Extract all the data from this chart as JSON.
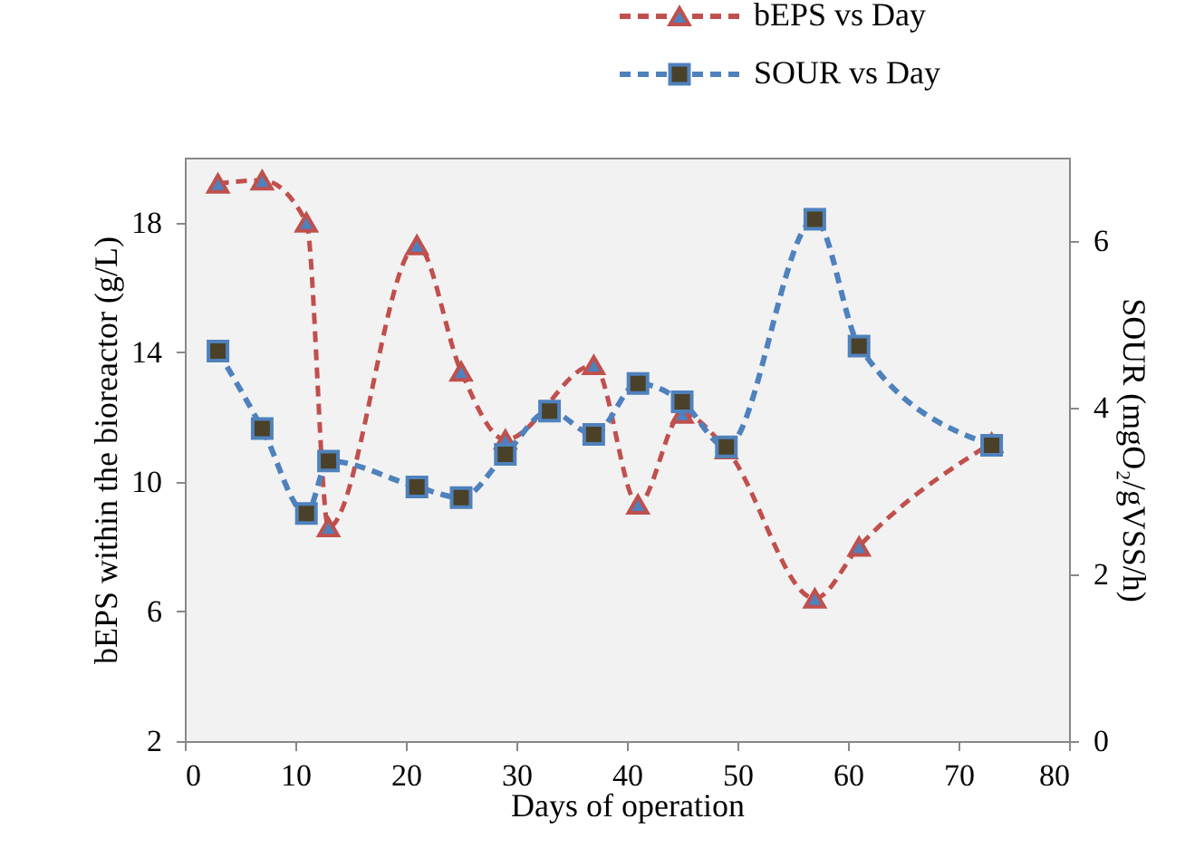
{
  "chart_data": {
    "type": "line",
    "xlabel": "Days of operation",
    "ylabel": "bEPS within the bioreactor (g/L)",
    "y2label": "SOUR (mgO₂/gVSS/h)",
    "xlim": [
      0,
      80
    ],
    "xticks": [
      0,
      10,
      20,
      30,
      40,
      50,
      60,
      70,
      80
    ],
    "ylim": [
      2,
      20
    ],
    "yticks": [
      2,
      6,
      10,
      14,
      18
    ],
    "y2lim": [
      0,
      7
    ],
    "y2ticks": [
      0,
      2,
      4,
      6
    ],
    "grid": false,
    "legend": "top right",
    "line_style": "dashed",
    "series": [
      {
        "name": "bEPS vs Day",
        "color": "#c0504d",
        "marker": "triangle",
        "x": [
          3,
          7,
          11,
          13,
          21,
          25,
          29,
          37,
          41,
          45,
          49,
          57,
          61,
          73
        ],
        "values": [
          19.2,
          19.3,
          18.0,
          8.6,
          17.3,
          13.4,
          11.3,
          13.6,
          9.3,
          12.1,
          11.0,
          6.4,
          8.0,
          11.2
        ]
      },
      {
        "name": "SOUR vs Day",
        "color": "#4f81bd",
        "marker": "square",
        "axis": "y2",
        "x": [
          3,
          7,
          11,
          13,
          21,
          25,
          29,
          33,
          37,
          41,
          45,
          49,
          57,
          61,
          73
        ],
        "values": [
          4.68,
          3.75,
          2.73,
          3.36,
          3.05,
          2.92,
          3.44,
          3.96,
          3.68,
          4.29,
          4.07,
          3.53,
          6.26,
          4.74,
          3.55
        ]
      }
    ]
  }
}
